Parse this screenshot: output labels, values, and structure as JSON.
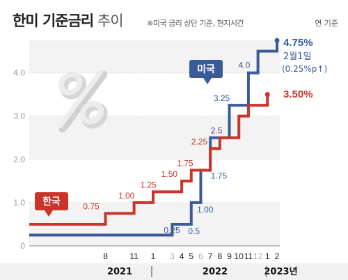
{
  "title": {
    "bold": "한미 기준금리",
    "thin": "추이"
  },
  "note": "※미국 금리 상단 기준, 현지시간",
  "basis": "연 기준",
  "colors": {
    "us": "#3a5b9a",
    "kr": "#c9342b",
    "highlight": "#6a3d8a",
    "grid": "#d9d9d9",
    "axis": "#9a9a9a"
  },
  "chart_data": {
    "type": "line",
    "step": true,
    "ylim": [
      0,
      4.75
    ],
    "yticks": [
      {
        "value": 0,
        "label": "0"
      },
      {
        "value": 1,
        "label": "1.0"
      },
      {
        "value": 2,
        "label": "2.0"
      },
      {
        "value": 3,
        "label": "3.0"
      },
      {
        "value": 4,
        "label": "4.0"
      }
    ],
    "x_ticks": [
      {
        "t": 8,
        "label": "8"
      },
      {
        "t": 11,
        "label": "11"
      },
      {
        "t": 13,
        "label": "1"
      },
      {
        "t": 15,
        "label": "3"
      },
      {
        "t": 16,
        "label": "4"
      },
      {
        "t": 17,
        "label": "5"
      },
      {
        "t": 18,
        "label": "6"
      },
      {
        "t": 19,
        "label": "7"
      },
      {
        "t": 20,
        "label": "8"
      },
      {
        "t": 21,
        "label": "9"
      },
      {
        "t": 22,
        "label": "10"
      },
      {
        "t": 23,
        "label": "11"
      },
      {
        "t": 24,
        "label": "12"
      },
      {
        "t": 25,
        "label": "1"
      },
      {
        "t": 26,
        "label": "2"
      }
    ],
    "muted_ticks": [
      15,
      18,
      24
    ],
    "year_labels": [
      {
        "t": 9.5,
        "label": "2021"
      },
      {
        "t": 19.5,
        "label": "2022"
      },
      {
        "t": 26.4,
        "label": "2023년"
      }
    ],
    "year_separators": [
      13,
      25
    ],
    "series": [
      {
        "name": "미국",
        "key": "us",
        "end_value": "4.75%",
        "end_note": "2월1일",
        "end_note2": "(0.25%p↑)",
        "points": [
          {
            "t": 0,
            "v": 0.25
          },
          {
            "t": 15,
            "v": 0.5
          },
          {
            "t": 17,
            "v": 1.0
          },
          {
            "t": 18,
            "v": 1.75
          },
          {
            "t": 19,
            "v": 2.5
          },
          {
            "t": 21,
            "v": 3.25
          },
          {
            "t": 23,
            "v": 4.0
          },
          {
            "t": 24,
            "v": 4.5
          },
          {
            "t": 26,
            "v": 4.75
          }
        ],
        "labels": [
          {
            "t": 16,
            "v": 0.25,
            "text": "0.25",
            "dx": -14,
            "dy": -3,
            "hl": false
          },
          {
            "t": 17,
            "v": 0.5,
            "text": "0.5",
            "dx": 4,
            "dy": 14,
            "hl": false
          },
          {
            "t": 17,
            "v": 1.0,
            "text": "1.00",
            "dx": 20,
            "dy": 14,
            "hl": false
          },
          {
            "t": 18,
            "v": 1.75,
            "text": "1.75",
            "dx": 26,
            "dy": 12,
            "hl": false
          },
          {
            "t": 19,
            "v": 2.5,
            "text": "2.5",
            "dx": 9,
            "dy": -6,
            "hl": true
          },
          {
            "t": 21,
            "v": 3.25,
            "text": "3.25",
            "dx": -11,
            "dy": -6,
            "hl": false
          },
          {
            "t": 23,
            "v": 4.0,
            "text": "4.0",
            "dx": -6,
            "dy": -7,
            "hl": false
          }
        ]
      },
      {
        "name": "한국",
        "key": "kr",
        "end_value": "3.50%",
        "points": [
          {
            "t": 0,
            "v": 0.5
          },
          {
            "t": 8,
            "v": 0.75
          },
          {
            "t": 11,
            "v": 1.0
          },
          {
            "t": 13,
            "v": 1.25
          },
          {
            "t": 16,
            "v": 1.5
          },
          {
            "t": 17,
            "v": 1.75
          },
          {
            "t": 19,
            "v": 2.25
          },
          {
            "t": 20,
            "v": 2.5
          },
          {
            "t": 22,
            "v": 3.0
          },
          {
            "t": 23,
            "v": 3.25
          },
          {
            "t": 25,
            "v": 3.5
          }
        ],
        "labels": [
          {
            "t": 6.5,
            "v": 0.75,
            "text": "0.75",
            "dx": 0,
            "dy": -6,
            "hl": false
          },
          {
            "t": 10.5,
            "v": 1.0,
            "text": "1.00",
            "dx": -4,
            "dy": -6,
            "hl": false
          },
          {
            "t": 12.5,
            "v": 1.25,
            "text": "1.25",
            "dx": 0,
            "dy": -6,
            "hl": false
          },
          {
            "t": 15,
            "v": 1.5,
            "text": "1.50",
            "dx": -4,
            "dy": -6,
            "hl": false
          },
          {
            "t": 16.5,
            "v": 1.75,
            "text": "1.75",
            "dx": -2,
            "dy": -6,
            "hl": false
          },
          {
            "t": 18,
            "v": 2.25,
            "text": "2.25",
            "dx": -2,
            "dy": -6,
            "hl": false
          }
        ]
      }
    ]
  }
}
